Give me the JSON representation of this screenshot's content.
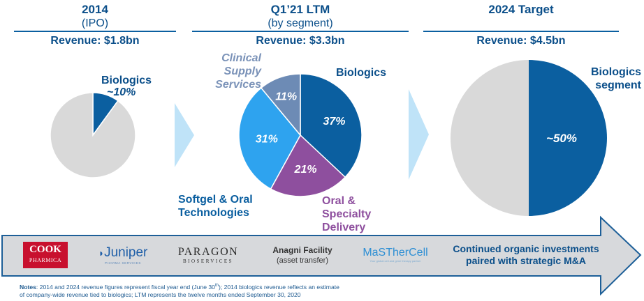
{
  "columns": [
    {
      "title": "2014",
      "subtitle": "(IPO)",
      "revenue": "Revenue: $1.8bn"
    },
    {
      "title": "Q1’21 LTM",
      "subtitle": "(by segment)",
      "revenue": "Revenue: $3.3bn"
    },
    {
      "title": "2024 Target",
      "subtitle": "",
      "revenue": "Revenue: $4.5bn"
    }
  ],
  "chart_data": [
    {
      "type": "pie",
      "title": "2014 (IPO)",
      "slices": [
        {
          "label": "Biologics",
          "value": 10,
          "display": "~10%",
          "color": "#0b5fa0"
        },
        {
          "label": "",
          "value": 90,
          "display": "",
          "color": "#d9d9d9"
        }
      ]
    },
    {
      "type": "pie",
      "title": "Q1’21 LTM (by segment)",
      "slices": [
        {
          "label": "Biologics",
          "value": 37,
          "display": "37%",
          "color": "#0b5fa0"
        },
        {
          "label": "Oral & Specialty Delivery",
          "value": 21,
          "display": "21%",
          "color": "#8e4f9e"
        },
        {
          "label": "Softgel & Oral Technologies",
          "value": 31,
          "display": "31%",
          "color": "#2ea3ef"
        },
        {
          "label": "Clinical Supply Services",
          "value": 11,
          "display": "11%",
          "color": "#6d8bb5"
        }
      ]
    },
    {
      "type": "pie",
      "title": "2024 Target",
      "slices": [
        {
          "label": "Biologics segment",
          "value": 50,
          "display": "~50%",
          "color": "#0b5fa0"
        },
        {
          "label": "",
          "value": 50,
          "display": "",
          "color": "#d9d9d9"
        }
      ]
    }
  ],
  "labels": {
    "p1_bio": "Biologics",
    "p1_pct": "~10%",
    "p2_clin1": "Clinical",
    "p2_clin2": "Supply",
    "p2_clin3": "Services",
    "p2_bio": "Biologics",
    "p2_soft1": "Softgel & Oral",
    "p2_soft2": "Technologies",
    "p2_oral1": "Oral &",
    "p2_oral2": "Specialty",
    "p2_oral3": "Delivery",
    "p3_bio1": "Biologics",
    "p3_bio2": "segment"
  },
  "banner": {
    "logos": {
      "cook_1": "COOK",
      "cook_2": "PHARMICA",
      "juniper_1": "Juniper",
      "juniper_2": "PHARMA SERVICES",
      "paragon_1": "PARAGON",
      "paragon_2": "BIOSERVICES",
      "anagni_1": "Anagni Facility",
      "anagni_2": "(asset transfer)",
      "masthercell_1": "MaSTherCell",
      "masthercell_2": "Your global cell and gene therapy partner"
    },
    "message_1": "Continued organic investments",
    "message_2": "paired with strategic M&A"
  },
  "notes": {
    "label": "Notes",
    "line1": ": 2014 and 2024 revenue figures represent fiscal year end (June 30",
    "sup": "th",
    "line1b": "); 2014 biologics revenue reflects an estimate",
    "line2": "of company-wide revenue tied to biologics; LTM represents the twelve months ended September 30, 2020"
  },
  "colors": {
    "accent": "#0b4f8a",
    "chevron": "#bfe3f8",
    "banner_bg": "#d7d9dc",
    "banner_border": "#1d5f98"
  }
}
